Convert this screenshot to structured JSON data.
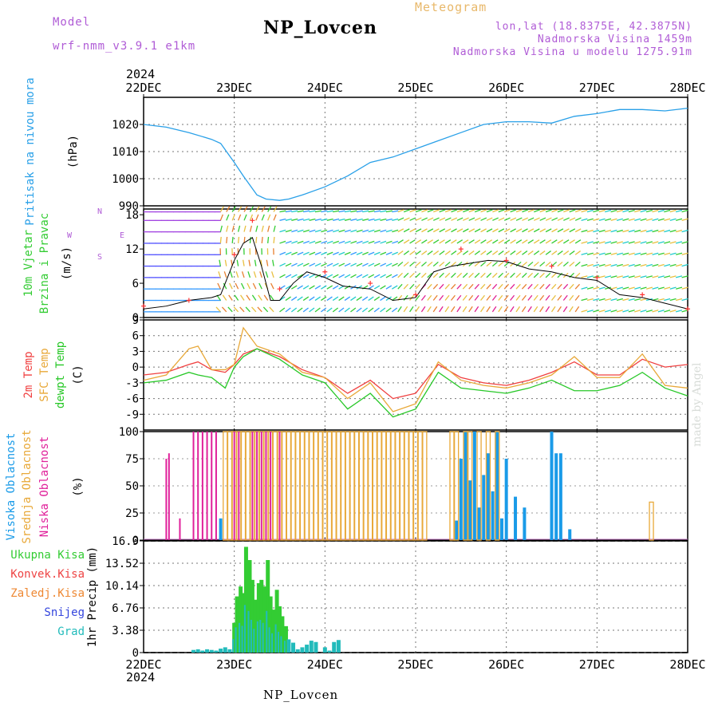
{
  "title": "NP_Lovcen",
  "header": {
    "model_label": "Model",
    "model_name": "wrf-nmm_v3.9.1 e1km",
    "meteogram": "Meteogram",
    "lonlat": "lon,lat (18.8375E, 42.3875N)",
    "altitude": "Nadmorska Visina 1459m",
    "model_altitude": "Nadmorska Visina u modelu 1275.91m"
  },
  "footer_name": "NP_Lovcen",
  "watermark": "made by Angel",
  "colors": {
    "pressure": "#29a0e8",
    "wind_speed": "#000000",
    "gust": "#ff3333",
    "temp2m": "#f04040",
    "sfc_temp": "#e8a838",
    "dewpoint": "#28c828",
    "high_cloud": "#1a9be8",
    "mid_cloud": "#e8a838",
    "low_cloud": "#e0209a",
    "total_precip": "#33cc33",
    "conv_precip": "#ee4444",
    "freezing": "#ee8833",
    "snow": "#3344dd",
    "hail": "#22bbbb"
  },
  "chart_data": [
    {
      "type": "line",
      "name": "pressure",
      "ylabel_1": "Pritisak na nivou mora",
      "ylabel_2": "(hPa)",
      "ylim": [
        990,
        1030
      ],
      "yticks": [
        "990",
        "1000",
        "1010",
        "1020"
      ],
      "x_start_year": "2024",
      "x_end_year": "2024",
      "xticks": [
        "22DEC",
        "23DEC",
        "24DEC",
        "25DEC",
        "26DEC",
        "27DEC",
        "28DEC"
      ],
      "x": [
        0,
        0.25,
        0.5,
        0.75,
        0.85,
        1.0,
        1.1,
        1.25,
        1.35,
        1.5,
        1.6,
        1.75,
        2.0,
        2.25,
        2.5,
        2.75,
        3.0,
        3.25,
        3.5,
        3.75,
        4.0,
        4.25,
        4.5,
        4.75,
        5.0,
        5.25,
        5.5,
        5.75,
        6.0
      ],
      "values": [
        1020,
        1019,
        1017,
        1014.5,
        1013,
        1006,
        1001,
        994,
        992.5,
        992,
        992.5,
        994,
        997,
        1001,
        1006,
        1008,
        1011,
        1014,
        1017,
        1020,
        1021,
        1021,
        1020.5,
        1023,
        1024,
        1025.5,
        1025.5,
        1025,
        1026
      ]
    },
    {
      "type": "line",
      "name": "wind",
      "ylabel_1": "10m Vjetar",
      "ylabel_2": "Brzina i Pravac",
      "ylabel_3": "(m/s)",
      "compass": "N",
      "compass_w": "W",
      "compass_e": "E",
      "compass_s": "S",
      "ylim": [
        0,
        19
      ],
      "yticks": [
        "0",
        "6",
        "12",
        "18"
      ],
      "x": [
        0,
        0.25,
        0.5,
        0.75,
        0.85,
        1.0,
        1.1,
        1.2,
        1.3,
        1.4,
        1.5,
        1.65,
        1.8,
        2.0,
        2.2,
        2.5,
        2.75,
        3.0,
        3.2,
        3.4,
        3.6,
        3.8,
        4.0,
        4.25,
        4.5,
        4.75,
        5.0,
        5.25,
        5.5,
        5.75,
        6.0
      ],
      "values": [
        1.5,
        2,
        3,
        3.5,
        4,
        10,
        13,
        14,
        9,
        3,
        3,
        6,
        8,
        7,
        5.5,
        5,
        3,
        3.5,
        8,
        9,
        9.5,
        10,
        9.8,
        8.5,
        8,
        7,
        6.5,
        4,
        3.5,
        2.5,
        1.5
      ],
      "gust_x": [
        0,
        0.5,
        1.0,
        1.2,
        1.5,
        2.0,
        2.5,
        3.0,
        3.5,
        4.0,
        4.5,
        5.0,
        5.5,
        6.0
      ],
      "gust_values": [
        2,
        3,
        11,
        17,
        5,
        8,
        6,
        4,
        12,
        10,
        9,
        7,
        4,
        1.5
      ]
    },
    {
      "type": "line",
      "name": "temperature",
      "ylabel_1": "2m Temp",
      "ylabel_2": "SFC Temp",
      "ylabel_3": "dewpt Temp",
      "ylabel_4": "(C)",
      "ylim": [
        -12,
        9
      ],
      "yticks": [
        "-9",
        "-6",
        "-3",
        "0",
        "3",
        "6",
        "9"
      ],
      "x": [
        0,
        0.25,
        0.5,
        0.6,
        0.75,
        0.9,
        1.0,
        1.1,
        1.25,
        1.5,
        1.75,
        2.0,
        2.25,
        2.5,
        2.75,
        3.0,
        3.25,
        3.5,
        3.75,
        4.0,
        4.25,
        4.5,
        4.75,
        5.0,
        5.25,
        5.5,
        5.75,
        6.0
      ],
      "series": [
        {
          "key": "t2m",
          "values": [
            -1.5,
            -1,
            0.5,
            1,
            -0.5,
            -1,
            0.5,
            2.5,
            3.5,
            2,
            -0.5,
            -2,
            -5,
            -2.5,
            -6,
            -5,
            0.5,
            -2,
            -3,
            -3.5,
            -2.5,
            -1,
            1,
            -1.5,
            -1.5,
            1.5,
            0,
            0.5
          ]
        },
        {
          "key": "sfc",
          "values": [
            -2.5,
            -1.5,
            3.5,
            4,
            -0.5,
            -0.5,
            0.5,
            7.5,
            4,
            2.5,
            -1,
            -2,
            -6,
            -3,
            -8.5,
            -7,
            1,
            -2.5,
            -3.5,
            -4,
            -3,
            -1.5,
            2,
            -2,
            -2,
            2.5,
            -3.5,
            -4
          ]
        },
        {
          "key": "dew",
          "values": [
            -3,
            -2.5,
            -1,
            -1.5,
            -2,
            -4,
            0,
            2,
            3.5,
            1.5,
            -1.5,
            -3,
            -8,
            -5,
            -9.5,
            -8,
            -1,
            -4,
            -4.5,
            -5,
            -4,
            -2.5,
            -4.5,
            -4.5,
            -3.5,
            -1,
            -4,
            -5.5
          ]
        }
      ]
    },
    {
      "type": "bar",
      "name": "clouds",
      "ylabel_1": "Visoka Oblacnost",
      "ylabel_2": "Srednja Oblacnost",
      "ylabel_3": "Niska Oblacnost",
      "ylabel_4": "(%)",
      "ylim": [
        0,
        100
      ],
      "yticks": [
        "0",
        "25",
        "50",
        "75",
        "100"
      ],
      "series": [
        {
          "key": "high",
          "x": [
            0.85,
            3.45,
            3.5,
            3.55,
            3.6,
            3.65,
            3.7,
            3.75,
            3.8,
            3.85,
            3.9,
            3.95,
            4.0,
            4.1,
            4.2,
            4.5,
            4.55,
            4.6,
            4.7
          ],
          "values": [
            20,
            18,
            75,
            100,
            55,
            100,
            30,
            60,
            80,
            45,
            100,
            20,
            75,
            40,
            30,
            100,
            80,
            80,
            10
          ]
        },
        {
          "key": "mid",
          "x": [
            0.9,
            0.95,
            1.0,
            1.05,
            1.1,
            1.15,
            1.2,
            1.25,
            1.3,
            1.35,
            1.4,
            1.45,
            1.5,
            1.55,
            1.6,
            1.65,
            1.7,
            1.75,
            1.8,
            1.85,
            1.9,
            1.95,
            2.0,
            2.05,
            2.1,
            2.15,
            2.2,
            2.25,
            2.3,
            2.35,
            2.4,
            2.45,
            2.5,
            2.55,
            2.6,
            2.65,
            2.7,
            2.75,
            2.8,
            2.85,
            2.9,
            2.95,
            3.0,
            3.05,
            3.1,
            3.4,
            3.45,
            3.55,
            3.6,
            3.7,
            3.8,
            3.9,
            5.6
          ],
          "values": [
            100,
            100,
            100,
            100,
            100,
            100,
            100,
            100,
            100,
            100,
            100,
            100,
            100,
            100,
            100,
            100,
            100,
            100,
            100,
            100,
            100,
            100,
            100,
            100,
            100,
            100,
            100,
            100,
            100,
            100,
            100,
            100,
            100,
            100,
            100,
            100,
            100,
            100,
            100,
            100,
            100,
            100,
            100,
            100,
            100,
            100,
            100,
            100,
            100,
            100,
            100,
            100,
            35
          ]
        },
        {
          "key": "low",
          "x": [
            0.25,
            0.28,
            0.4,
            0.55,
            0.6,
            0.65,
            0.7,
            0.75,
            0.8,
            1.0,
            1.05,
            1.2,
            1.25,
            1.3,
            1.35,
            1.4,
            1.5
          ],
          "values": [
            75,
            80,
            20,
            100,
            100,
            100,
            100,
            100,
            100,
            100,
            100,
            100,
            100,
            100,
            100,
            100,
            100
          ]
        }
      ]
    },
    {
      "type": "bar",
      "name": "precipitation",
      "ylabel_1": "1hr Precip (mm)",
      "legend": [
        "Ukupna Kisa",
        "Konvek.Kisa",
        "Zaledj.Kisa",
        "Snijeg",
        "Grad"
      ],
      "ylim": [
        0,
        16.9
      ],
      "yticks": [
        "0",
        "3.38",
        "6.76",
        "10.14",
        "13.52",
        "16.9"
      ],
      "x": [
        0.55,
        0.6,
        0.65,
        0.7,
        0.75,
        0.8,
        0.85,
        0.9,
        0.95,
        1.0,
        1.03,
        1.07,
        1.1,
        1.13,
        1.17,
        1.2,
        1.23,
        1.27,
        1.3,
        1.33,
        1.37,
        1.4,
        1.43,
        1.47,
        1.5,
        1.53,
        1.57,
        1.6,
        1.65,
        1.7,
        1.75,
        1.8,
        1.85,
        1.9,
        2.0,
        2.05,
        2.1,
        2.15
      ],
      "values": [
        0.4,
        0.5,
        0.3,
        0.5,
        0.4,
        0.3,
        0.6,
        0.8,
        0.5,
        4.5,
        8.5,
        10,
        9,
        16,
        14,
        11,
        8,
        10.5,
        11,
        10,
        14,
        8.5,
        6.5,
        9.5,
        7,
        5.5,
        4,
        2,
        1.5,
        0.5,
        0.8,
        1.2,
        1.8,
        1.6,
        0.8,
        0.3,
        1.6,
        1.9
      ]
    }
  ]
}
